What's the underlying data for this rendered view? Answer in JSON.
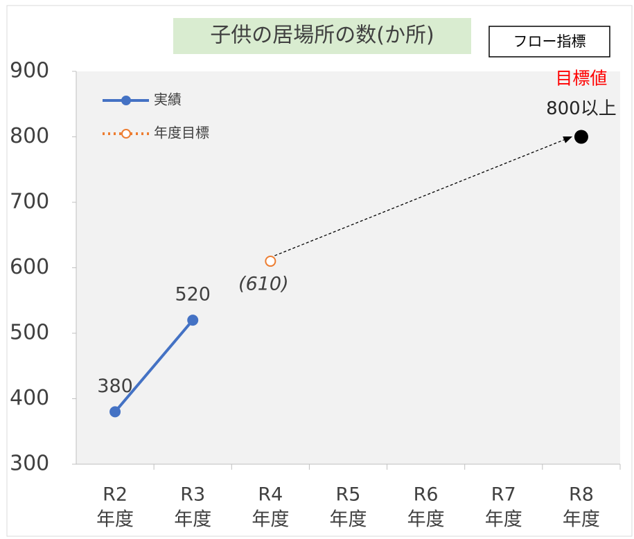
{
  "chart_data": {
    "type": "line",
    "title": "子供の居場所の数(か所)",
    "badge": "フロー指標",
    "categories": [
      [
        "R2",
        "年度"
      ],
      [
        "R3",
        "年度"
      ],
      [
        "R4",
        "年度"
      ],
      [
        "R5",
        "年度"
      ],
      [
        "R6",
        "年度"
      ],
      [
        "R7",
        "年度"
      ],
      [
        "R8",
        "年度"
      ]
    ],
    "series": [
      {
        "name": "実績",
        "color": "#4472c4",
        "style": "solid",
        "marker": "filled",
        "values": [
          380,
          520,
          null,
          null,
          null,
          null,
          null
        ]
      },
      {
        "name": "年度目標",
        "color": "#ed7d31",
        "style": "dotted",
        "marker": "hollow",
        "values": [
          null,
          null,
          610,
          null,
          null,
          null,
          null
        ],
        "value_labels": [
          null,
          null,
          "(610)",
          null,
          null,
          null,
          null
        ]
      }
    ],
    "target": {
      "label": "目標値",
      "color": "#000000",
      "label_color": "#ff0000",
      "values": [
        null,
        null,
        null,
        null,
        null,
        null,
        800
      ],
      "value_labels": [
        null,
        null,
        null,
        null,
        null,
        null,
        "800以上"
      ]
    },
    "ylim": [
      300,
      900
    ],
    "yticks": [
      300,
      400,
      500,
      600,
      700,
      800,
      900
    ],
    "grid": false,
    "legend": "upper left"
  }
}
